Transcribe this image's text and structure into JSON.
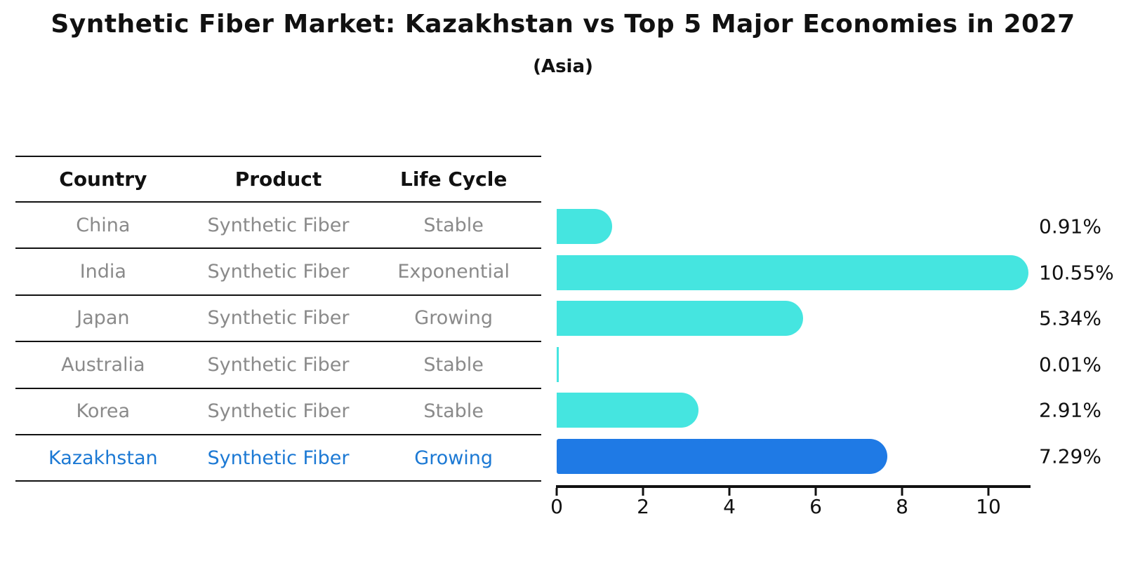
{
  "title": "Synthetic Fiber Market: Kazakhstan vs Top 5 Major Economies in 2027",
  "subtitle": "(Asia)",
  "table": {
    "headers": [
      "Country",
      "Product",
      "Life Cycle"
    ],
    "rows": [
      {
        "country": "China",
        "product": "Synthetic Fiber",
        "life_cycle": "Stable"
      },
      {
        "country": "India",
        "product": "Synthetic Fiber",
        "life_cycle": "Exponential"
      },
      {
        "country": "Japan",
        "product": "Synthetic Fiber",
        "life_cycle": "Growing"
      },
      {
        "country": "Australia",
        "product": "Synthetic Fiber",
        "life_cycle": "Stable"
      },
      {
        "country": "Korea",
        "product": "Synthetic Fiber",
        "life_cycle": "Stable"
      },
      {
        "country": "Kazakhstan",
        "product": "Synthetic Fiber",
        "life_cycle": "Growing"
      }
    ],
    "highlight_row": "Kazakhstan"
  },
  "chart_data": {
    "type": "bar",
    "orientation": "horizontal",
    "categories": [
      "China",
      "India",
      "Japan",
      "Australia",
      "Korea",
      "Kazakhstan"
    ],
    "values": [
      0.91,
      10.55,
      5.34,
      0.01,
      2.91,
      7.29
    ],
    "value_labels": [
      "0.91%",
      "10.55%",
      "5.34%",
      "0.01%",
      "2.91%",
      "7.29%"
    ],
    "xticks": [
      0,
      2,
      4,
      6,
      8,
      10
    ],
    "xtick_labels": [
      "0",
      "2",
      "4",
      "6",
      "8",
      "10"
    ],
    "xlim": [
      0,
      10.95
    ],
    "grid": false,
    "legend": false,
    "bar_color": "#45E5E0",
    "highlight_color": "#1F7AE5",
    "highlight_index": 5,
    "highlight_border_style": "dotted",
    "axis_color": "#111111",
    "table_text_color": "#8a8a8a",
    "highlight_text_color": "#1c79d4"
  }
}
